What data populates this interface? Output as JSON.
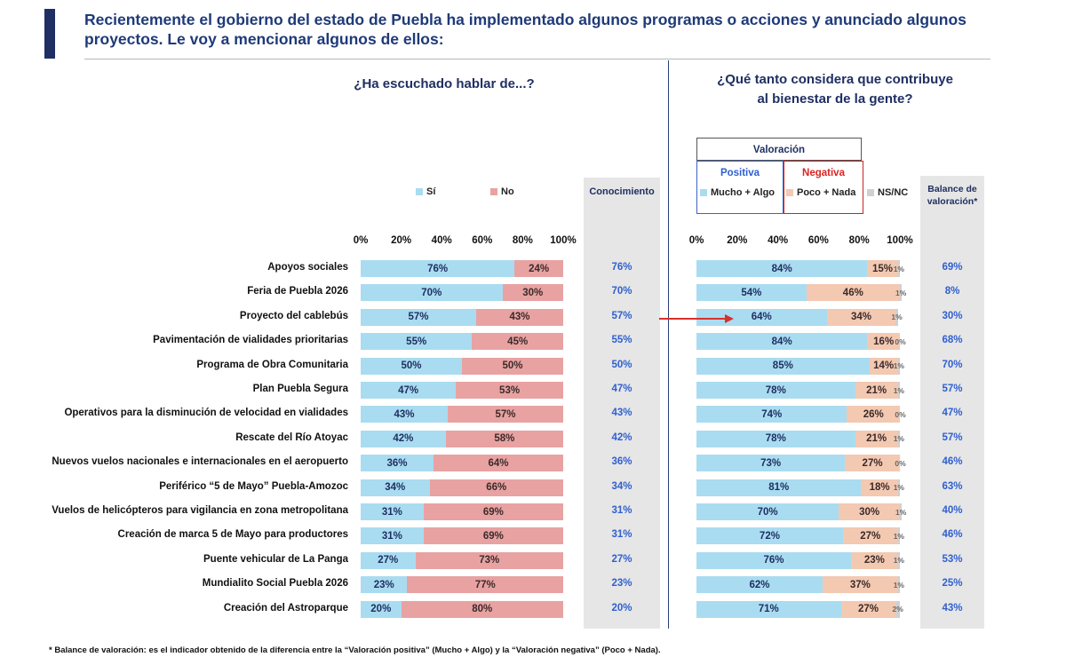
{
  "header": {
    "title": "Recientemente el gobierno del estado de Puebla ha implementado algunos programas o acciones y anunciado algunos proyectos. Le voy a mencionar algunos de ellos:"
  },
  "left_panel": {
    "question": "¿Ha escuchado hablar de...?",
    "legend": {
      "si": "Sí",
      "no": "No"
    },
    "knowledge_header": "Conocimiento",
    "ticks": [
      "0%",
      "20%",
      "40%",
      "60%",
      "80%",
      "100%"
    ]
  },
  "right_panel": {
    "question_line1": "¿Qué tanto considera que contribuye",
    "question_line2": "al bienestar de la gente?",
    "valoracion_label": "Valoración",
    "positiva_label": "Positiva",
    "negativa_label": "Negativa",
    "legend": {
      "pos": "Mucho + Algo",
      "neg": "Poco + Nada",
      "ns": "NS/NC"
    },
    "balance_header_line1": "Balance de",
    "balance_header_line2": "valoración*",
    "ticks": [
      "0%",
      "20%",
      "40%",
      "60%",
      "80%",
      "100%"
    ]
  },
  "colors": {
    "si": "#a9dcf0",
    "no": "#e8a2a2",
    "pos": "#a9dcf0",
    "neg": "#f3c9b2",
    "ns": "#d0d0d0",
    "accent": "#1f2f62",
    "arrow": "#d9302c"
  },
  "chart_data": [
    {
      "type": "bar",
      "stacked": true,
      "orientation": "horizontal",
      "categories": [
        "Apoyos sociales",
        "Feria de Puebla 2026",
        "Proyecto del cablebús",
        "Pavimentación de vialidades prioritarias",
        "Programa de Obra Comunitaria",
        "Plan Puebla Segura",
        "Operativos para la disminución de velocidad en vialidades",
        "Rescate del Río Atoyac",
        "Nuevos vuelos nacionales e internacionales en el aeropuerto",
        "Periférico “5 de Mayo” Puebla-Amozoc",
        "Vuelos de helicópteros para vigilancia en zona metropolitana",
        "Creación de marca 5 de Mayo para productores",
        "Puente vehicular de La Panga",
        "Mundialito Social Puebla 2026",
        "Creación del Astroparque"
      ],
      "series": [
        {
          "name": "Sí",
          "values": [
            76,
            70,
            57,
            55,
            50,
            47,
            43,
            42,
            36,
            34,
            31,
            31,
            27,
            23,
            20
          ]
        },
        {
          "name": "No",
          "values": [
            24,
            30,
            43,
            45,
            50,
            53,
            57,
            58,
            64,
            66,
            69,
            69,
            73,
            77,
            80
          ]
        }
      ],
      "conocimiento": [
        "76%",
        "70%",
        "57%",
        "55%",
        "50%",
        "47%",
        "43%",
        "42%",
        "36%",
        "34%",
        "31%",
        "31%",
        "27%",
        "23%",
        "20%"
      ],
      "xlim": [
        0,
        100
      ]
    },
    {
      "type": "bar",
      "stacked": true,
      "orientation": "horizontal",
      "series": [
        {
          "name": "Mucho + Algo",
          "values": [
            84,
            54,
            64,
            84,
            85,
            78,
            74,
            78,
            73,
            81,
            70,
            72,
            76,
            62,
            71
          ]
        },
        {
          "name": "Poco + Nada",
          "values": [
            15,
            46,
            34,
            16,
            14,
            21,
            26,
            21,
            27,
            18,
            30,
            27,
            23,
            37,
            27
          ]
        },
        {
          "name": "NS/NC",
          "values": [
            1,
            1,
            1,
            0,
            1,
            1,
            0,
            1,
            0,
            1,
            1,
            1,
            1,
            1,
            2
          ]
        }
      ],
      "balance": [
        "69%",
        "8%",
        "30%",
        "68%",
        "70%",
        "57%",
        "47%",
        "57%",
        "46%",
        "63%",
        "40%",
        "46%",
        "53%",
        "25%",
        "43%"
      ],
      "xlim": [
        0,
        100
      ]
    }
  ],
  "footnote": "* Balance de valoración: es el indicador obtenido de la diferencia entre la “Valoración positiva” (Mucho + Algo) y la “Valoración negativa” (Poco + Nada)."
}
